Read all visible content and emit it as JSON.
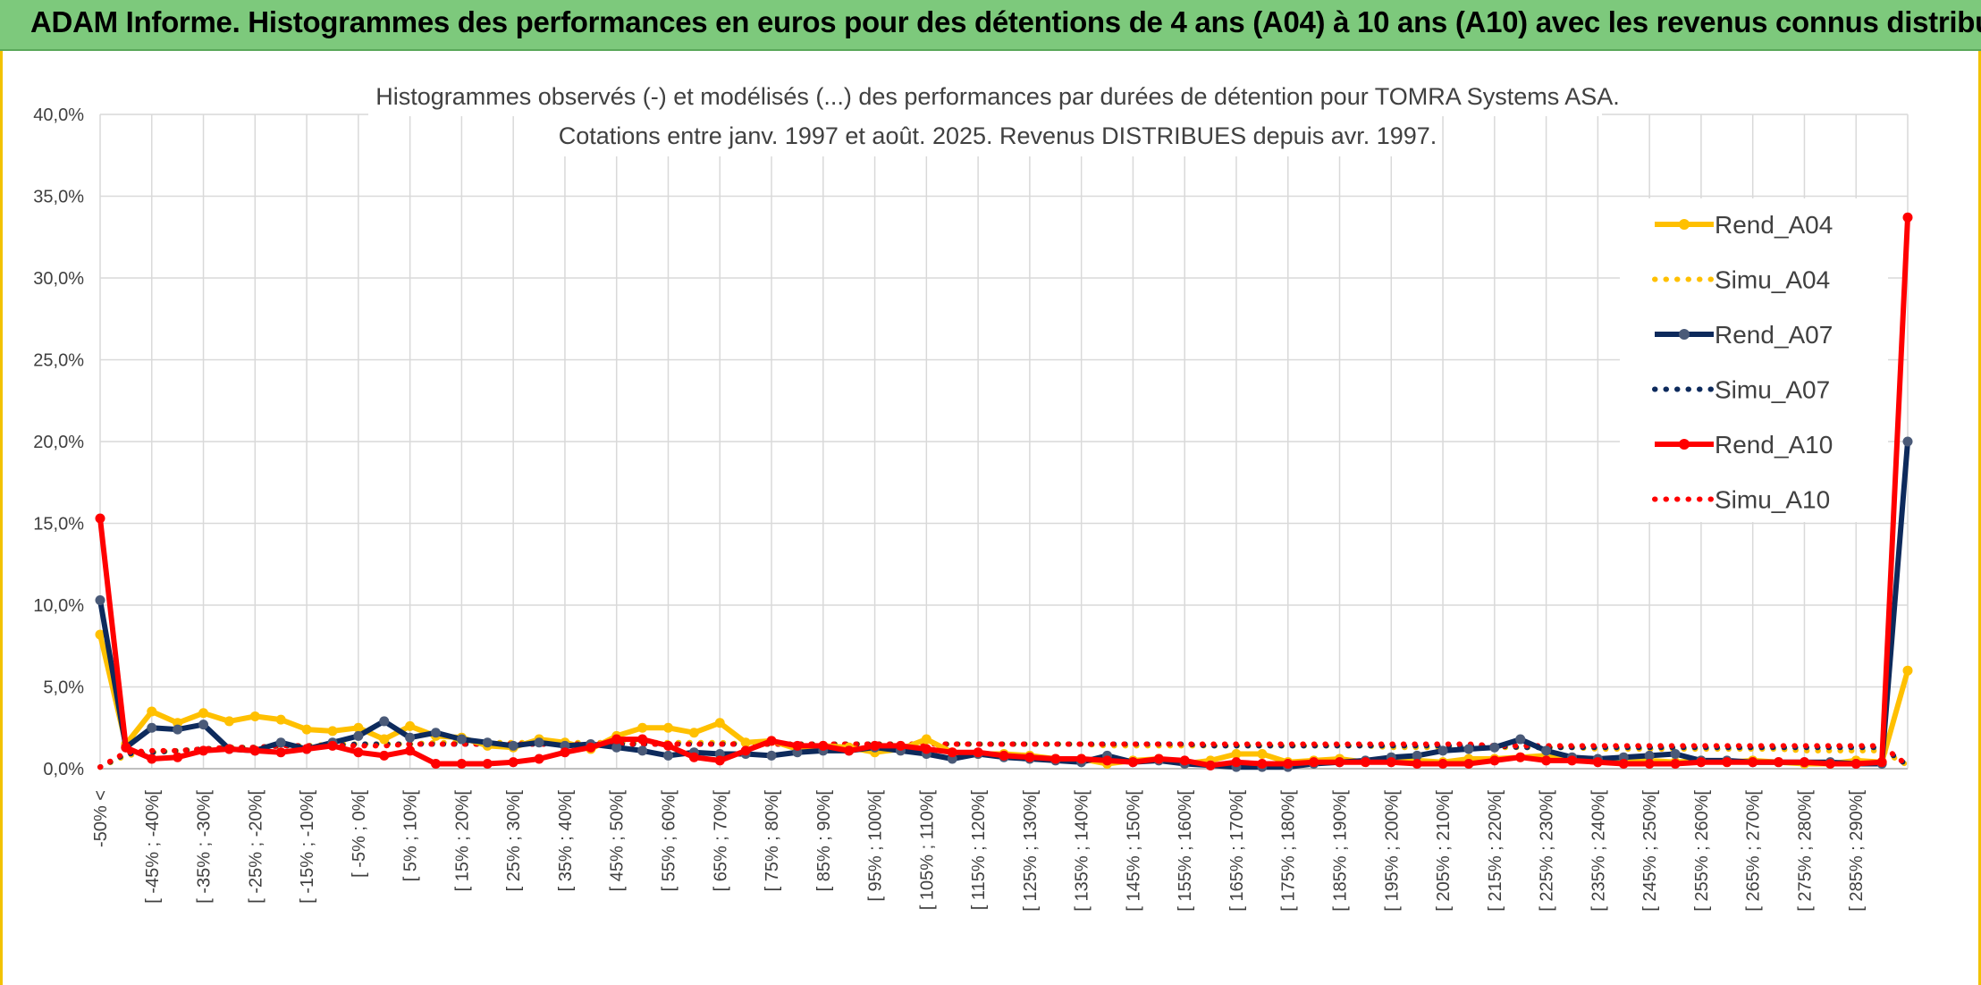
{
  "header": {
    "title": "ADAM Informe. Histogrammes des performances en euros pour des détentions de 4 ans (A04) à 10 ans (A10) avec les revenus connus distribués"
  },
  "chart_data": {
    "type": "line",
    "title_line1": "Histogrammes observés (-) et modélisés (...) des performances par durées de détention pour TOMRA Systems ASA.",
    "title_line2": "Cotations entre janv. 1997 et août. 2025. Revenus DISTRIBUES depuis avr. 1997.",
    "ylim": [
      0,
      40
    ],
    "yticks": [
      "0,0%",
      "5,0%",
      "10,0%",
      "15,0%",
      "20,0%",
      "25,0%",
      "30,0%",
      "35,0%",
      "40,0%"
    ],
    "grid": true,
    "legend_position": "top-right",
    "categories": [
      "-50% <",
      "[ -50% ; -45%[",
      "[ -45% ; -40%[",
      "[ -40% ; -35%[",
      "[ -35% ; -30%[",
      "[ -30% ; -25%[",
      "[ -25% ; -20%[",
      "[ -20% ; -15%[",
      "[ -15% ; -10%[",
      "[ -10% ; -5%[",
      "[ -5% ; 0%[",
      "[ 0% ; 5%[",
      "[ 5% ; 10%[",
      "[ 10% ; 15%[",
      "[ 15% ; 20%[",
      "[ 20% ; 25%[",
      "[ 25% ; 30%[",
      "[ 30% ; 35%[",
      "[ 35% ; 40%[",
      "[ 40% ; 45%[",
      "[ 45% ; 50%[",
      "[ 50% ; 55%[",
      "[ 55% ; 60%[",
      "[ 60% ; 65%[",
      "[ 65% ; 70%[",
      "[ 70% ; 75%[",
      "[ 75% ; 80%[",
      "[ 80% ; 85%[",
      "[ 85% ; 90%[",
      "[ 90% ; 95%[",
      "[ 95% ; 100%[",
      "[ 100% ; 105%[",
      "[ 105% ; 110%[",
      "[ 110% ; 115%[",
      "[ 115% ; 120%[",
      "[ 120% ; 125%[",
      "[ 125% ; 130%[",
      "[ 130% ; 135%[",
      "[ 135% ; 140%[",
      "[ 140% ; 145%[",
      "[ 145% ; 150%[",
      "[ 150% ; 155%[",
      "[ 155% ; 160%[",
      "[ 160% ; 165%[",
      "[ 165% ; 170%[",
      "[ 170% ; 175%[",
      "[ 175% ; 180%[",
      "[ 180% ; 185%[",
      "[ 185% ; 190%[",
      "[ 190% ; 195%[",
      "[ 195% ; 200%[",
      "[ 200% ; 205%[",
      "[ 205% ; 210%[",
      "[ 210% ; 215%[",
      "[ 215% ; 220%[",
      "[ 220% ; 225%[",
      "[ 225% ; 230%[",
      "[ 230% ; 235%[",
      "[ 235% ; 240%[",
      "[ 240% ; 245%[",
      "[ 245% ; 250%[",
      "[ 250% ; 255%[",
      "[ 255% ; 260%[",
      "[ 260% ; 265%[",
      "[ 265% ; 270%[",
      "[ 270% ; 275%[",
      "[ 275% ; 280%[",
      "[ 280% ; 285%[",
      "[ 285% ; 290%[",
      "[ 290% ; 295%[",
      "[ 295% ; 300%["
    ],
    "shown_tick_labels": [
      "-50% <",
      "[ -45% ; -40%[",
      "[ -35% ; -30%[",
      "[ -25% ; -20%[",
      "[ -15% ; -10%[",
      "[ -5% ; 0%[",
      "[ 5% ; 10%[",
      "[ 15% ; 20%[",
      "[ 25% ; 30%[",
      "[ 35% ; 40%[",
      "[ 45% ; 50%[",
      "[ 55% ; 60%[",
      "[ 65% ; 70%[",
      "[ 75% ; 80%[",
      "[ 85% ; 90%[",
      "[ 95% ; 100%[",
      "[ 105% ; 110%[",
      "[ 115% ; 120%[",
      "[ 125% ; 130%[",
      "[ 135% ; 140%[",
      "[ 145% ; 150%[",
      "[ 155% ; 160%[",
      "[ 165% ; 170%[",
      "[ 175% ; 180%[",
      "[ 185% ; 190%[",
      "[ 195% ; 200%[",
      "[ 205% ; 210%[",
      "[ 215% ; 220%[",
      "[ 225% ; 230%[",
      "[ 235% ; 240%[",
      "[ 245% ; 250%[",
      "[ 255% ; 260%[",
      "[ 265% ; 270%[",
      "[ 275% ; 280%[",
      "[ 285% ; 290%["
    ],
    "series": [
      {
        "name": "Rend_A04",
        "color": "#ffc000",
        "style": "solid",
        "markers": true,
        "values": [
          8.2,
          1.5,
          3.5,
          2.8,
          3.4,
          2.9,
          3.2,
          3.0,
          2.4,
          2.3,
          2.5,
          1.8,
          2.6,
          2.0,
          1.9,
          1.4,
          1.3,
          1.8,
          1.6,
          1.2,
          2.0,
          2.5,
          2.5,
          2.2,
          2.8,
          1.6,
          1.7,
          1.2,
          1.4,
          1.3,
          1.0,
          1.2,
          1.8,
          1.0,
          0.9,
          0.9,
          0.8,
          0.6,
          0.6,
          0.3,
          0.5,
          0.6,
          0.3,
          0.5,
          0.9,
          0.9,
          0.4,
          0.5,
          0.6,
          0.4,
          0.5,
          0.5,
          0.4,
          0.6,
          0.6,
          0.7,
          0.8,
          0.6,
          0.5,
          0.4,
          0.5,
          0.4,
          0.5,
          0.4,
          0.5,
          0.4,
          0.3,
          0.3,
          0.5,
          0.4,
          6.0
        ]
      },
      {
        "name": "Simu_A04",
        "color": "#ffc000",
        "style": "dotted",
        "markers": false,
        "values": [
          0.1,
          0.8,
          1.0,
          1.1,
          1.2,
          1.3,
          1.3,
          1.4,
          1.4,
          1.5,
          1.5,
          1.5,
          1.5,
          1.6,
          1.6,
          1.6,
          1.6,
          1.6,
          1.6,
          1.6,
          1.6,
          1.6,
          1.6,
          1.6,
          1.6,
          1.5,
          1.5,
          1.5,
          1.5,
          1.5,
          1.5,
          1.5,
          1.5,
          1.5,
          1.5,
          1.5,
          1.5,
          1.5,
          1.5,
          1.4,
          1.4,
          1.4,
          1.4,
          1.4,
          1.4,
          1.4,
          1.4,
          1.4,
          1.4,
          1.4,
          1.3,
          1.3,
          1.3,
          1.3,
          1.3,
          1.3,
          1.3,
          1.3,
          1.2,
          1.2,
          1.2,
          1.2,
          1.2,
          1.2,
          1.2,
          1.2,
          1.1,
          1.1,
          1.1,
          1.1,
          0.2
        ]
      },
      {
        "name": "Rend_A07",
        "color": "#0d2a5c",
        "style": "solid",
        "markers": true,
        "values": [
          10.3,
          1.3,
          2.5,
          2.4,
          2.7,
          1.2,
          1.1,
          1.6,
          1.2,
          1.6,
          2.0,
          2.9,
          1.9,
          2.2,
          1.8,
          1.6,
          1.4,
          1.6,
          1.4,
          1.5,
          1.3,
          1.1,
          0.8,
          1.0,
          0.9,
          0.9,
          0.8,
          1.0,
          1.1,
          1.1,
          1.3,
          1.1,
          0.9,
          0.6,
          0.9,
          0.7,
          0.6,
          0.5,
          0.4,
          0.8,
          0.4,
          0.5,
          0.3,
          0.2,
          0.1,
          0.1,
          0.1,
          0.3,
          0.4,
          0.5,
          0.7,
          0.8,
          1.1,
          1.2,
          1.3,
          1.8,
          1.1,
          0.7,
          0.6,
          0.7,
          0.8,
          0.9,
          0.5,
          0.5,
          0.4,
          0.4,
          0.4,
          0.4,
          0.3,
          0.3,
          20.0
        ]
      },
      {
        "name": "Simu_A07",
        "color": "#0d2a5c",
        "style": "dotted",
        "markers": false,
        "values": [
          0.1,
          0.9,
          1.0,
          1.1,
          1.2,
          1.3,
          1.3,
          1.4,
          1.4,
          1.4,
          1.5,
          1.5,
          1.5,
          1.5,
          1.5,
          1.5,
          1.5,
          1.5,
          1.5,
          1.5,
          1.5,
          1.5,
          1.5,
          1.5,
          1.5,
          1.5,
          1.5,
          1.5,
          1.5,
          1.5,
          1.5,
          1.5,
          1.5,
          1.5,
          1.5,
          1.5,
          1.5,
          1.5,
          1.5,
          1.5,
          1.5,
          1.5,
          1.5,
          1.4,
          1.4,
          1.4,
          1.4,
          1.4,
          1.4,
          1.4,
          1.4,
          1.4,
          1.4,
          1.4,
          1.4,
          1.3,
          1.3,
          1.3,
          1.3,
          1.3,
          1.3,
          1.3,
          1.3,
          1.3,
          1.3,
          1.3,
          1.3,
          1.3,
          1.3,
          1.3,
          0.2
        ]
      },
      {
        "name": "Rend_A10",
        "color": "#ff0000",
        "style": "solid",
        "markers": true,
        "values": [
          15.3,
          1.3,
          0.6,
          0.7,
          1.1,
          1.2,
          1.1,
          1.0,
          1.2,
          1.4,
          1.0,
          0.8,
          1.1,
          0.3,
          0.3,
          0.3,
          0.4,
          0.6,
          1.0,
          1.3,
          1.8,
          1.8,
          1.4,
          0.7,
          0.5,
          1.1,
          1.7,
          1.4,
          1.4,
          1.1,
          1.4,
          1.4,
          1.2,
          1.0,
          1.0,
          0.8,
          0.7,
          0.6,
          0.6,
          0.5,
          0.4,
          0.6,
          0.5,
          0.2,
          0.4,
          0.3,
          0.3,
          0.4,
          0.4,
          0.4,
          0.4,
          0.3,
          0.3,
          0.3,
          0.5,
          0.7,
          0.5,
          0.5,
          0.4,
          0.3,
          0.3,
          0.3,
          0.4,
          0.4,
          0.4,
          0.4,
          0.4,
          0.3,
          0.3,
          0.4,
          33.7
        ]
      },
      {
        "name": "Simu_A10",
        "color": "#ff0000",
        "style": "dotted",
        "markers": false,
        "values": [
          0.1,
          1.0,
          1.1,
          1.1,
          1.2,
          1.3,
          1.3,
          1.4,
          1.4,
          1.4,
          1.4,
          1.4,
          1.5,
          1.5,
          1.5,
          1.5,
          1.5,
          1.5,
          1.5,
          1.5,
          1.5,
          1.5,
          1.5,
          1.5,
          1.5,
          1.5,
          1.5,
          1.5,
          1.5,
          1.5,
          1.5,
          1.5,
          1.5,
          1.5,
          1.5,
          1.5,
          1.5,
          1.5,
          1.5,
          1.5,
          1.5,
          1.5,
          1.5,
          1.5,
          1.5,
          1.5,
          1.5,
          1.5,
          1.5,
          1.5,
          1.5,
          1.5,
          1.5,
          1.5,
          1.4,
          1.4,
          1.4,
          1.4,
          1.4,
          1.4,
          1.4,
          1.4,
          1.4,
          1.4,
          1.4,
          1.4,
          1.4,
          1.4,
          1.4,
          1.4,
          0.2
        ]
      }
    ]
  }
}
